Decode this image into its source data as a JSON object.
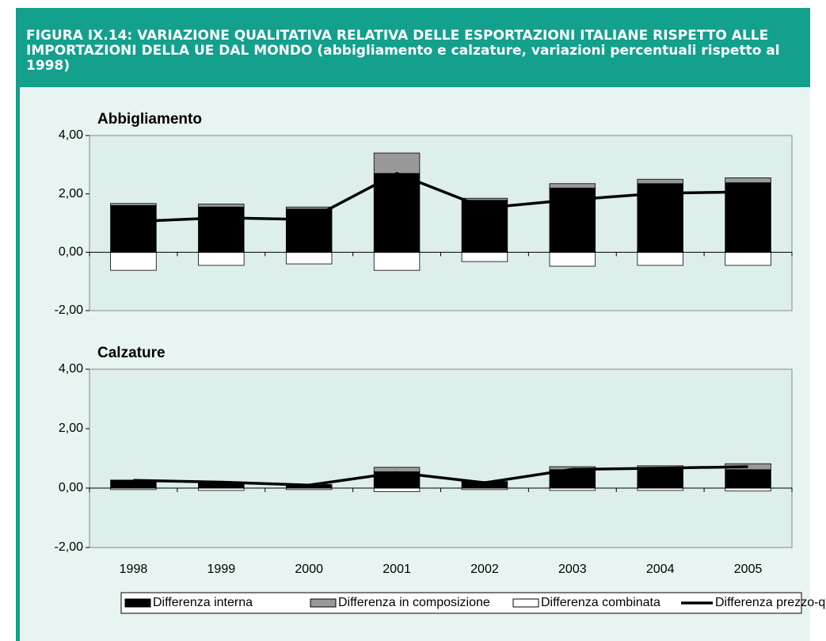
{
  "header": {
    "title": "FIGURA IX.14: VARIAZIONE QUALITATIVA RELATIVA DELLE ESPORTAZIONI ITALIANE RISPETTO ALLE IMPORTAZIONI DELLA UE DAL MONDO (abbigliamento e calzature, variazioni percentuali rispetto al 1998)"
  },
  "chart_data": [
    {
      "type": "bar",
      "title": "Abbigliamento",
      "stacked": true,
      "ylim": [
        -2,
        4
      ],
      "yticks": [
        {
          "value": -2,
          "label": "-2,00"
        },
        {
          "value": 0,
          "label": "0,00"
        },
        {
          "value": 2,
          "label": "2,00"
        },
        {
          "value": 4,
          "label": "4,00"
        }
      ],
      "series": [
        {
          "name": "Differenza interna",
          "color": "#000000",
          "type": "bar",
          "values": [
            1.6,
            1.55,
            1.48,
            2.7,
            1.78,
            2.2,
            2.35,
            2.38
          ]
        },
        {
          "name": "Differenza in composizione",
          "color": "#999999",
          "type": "bar",
          "values": [
            0.07,
            0.1,
            0.07,
            0.7,
            0.07,
            0.15,
            0.15,
            0.17
          ]
        },
        {
          "name": "Differenza combinata",
          "color": "#ffffff",
          "type": "bar",
          "values": [
            -0.62,
            -0.45,
            -0.4,
            -0.62,
            -0.32,
            -0.48,
            -0.45,
            -0.45
          ]
        },
        {
          "name": "Differenza prezzo-qualità",
          "color": "#000000",
          "type": "line",
          "values": [
            1.05,
            1.18,
            1.12,
            2.7,
            1.52,
            1.8,
            2.02,
            2.07
          ]
        }
      ]
    },
    {
      "type": "bar",
      "title": "Calzature",
      "stacked": true,
      "categories": [
        "1998",
        "1999",
        "2000",
        "2001",
        "2002",
        "2003",
        "2004",
        "2005"
      ],
      "ylim": [
        -2,
        4
      ],
      "yticks": [
        {
          "value": -2,
          "label": "-2,00"
        },
        {
          "value": 0,
          "label": "0,00"
        },
        {
          "value": 2,
          "label": "2,00"
        },
        {
          "value": 4,
          "label": "4,00"
        }
      ],
      "series": [
        {
          "color": "#000000",
          "type": "bar",
          "values": [
            0.25,
            0.18,
            0.1,
            0.55,
            0.2,
            0.62,
            0.65,
            0.62
          ]
        },
        {
          "color": "#999999",
          "type": "bar",
          "values": [
            0.02,
            0.02,
            0.02,
            0.15,
            0.02,
            0.1,
            0.1,
            0.2
          ]
        },
        {
          "color": "#ffffff",
          "type": "bar",
          "values": [
            -0.05,
            -0.08,
            -0.05,
            -0.12,
            -0.05,
            -0.08,
            -0.08,
            -0.1
          ]
        },
        {
          "color": "#000000",
          "type": "line",
          "values": [
            0.26,
            0.2,
            0.1,
            0.52,
            0.18,
            0.63,
            0.67,
            0.72
          ]
        }
      ]
    }
  ]
}
